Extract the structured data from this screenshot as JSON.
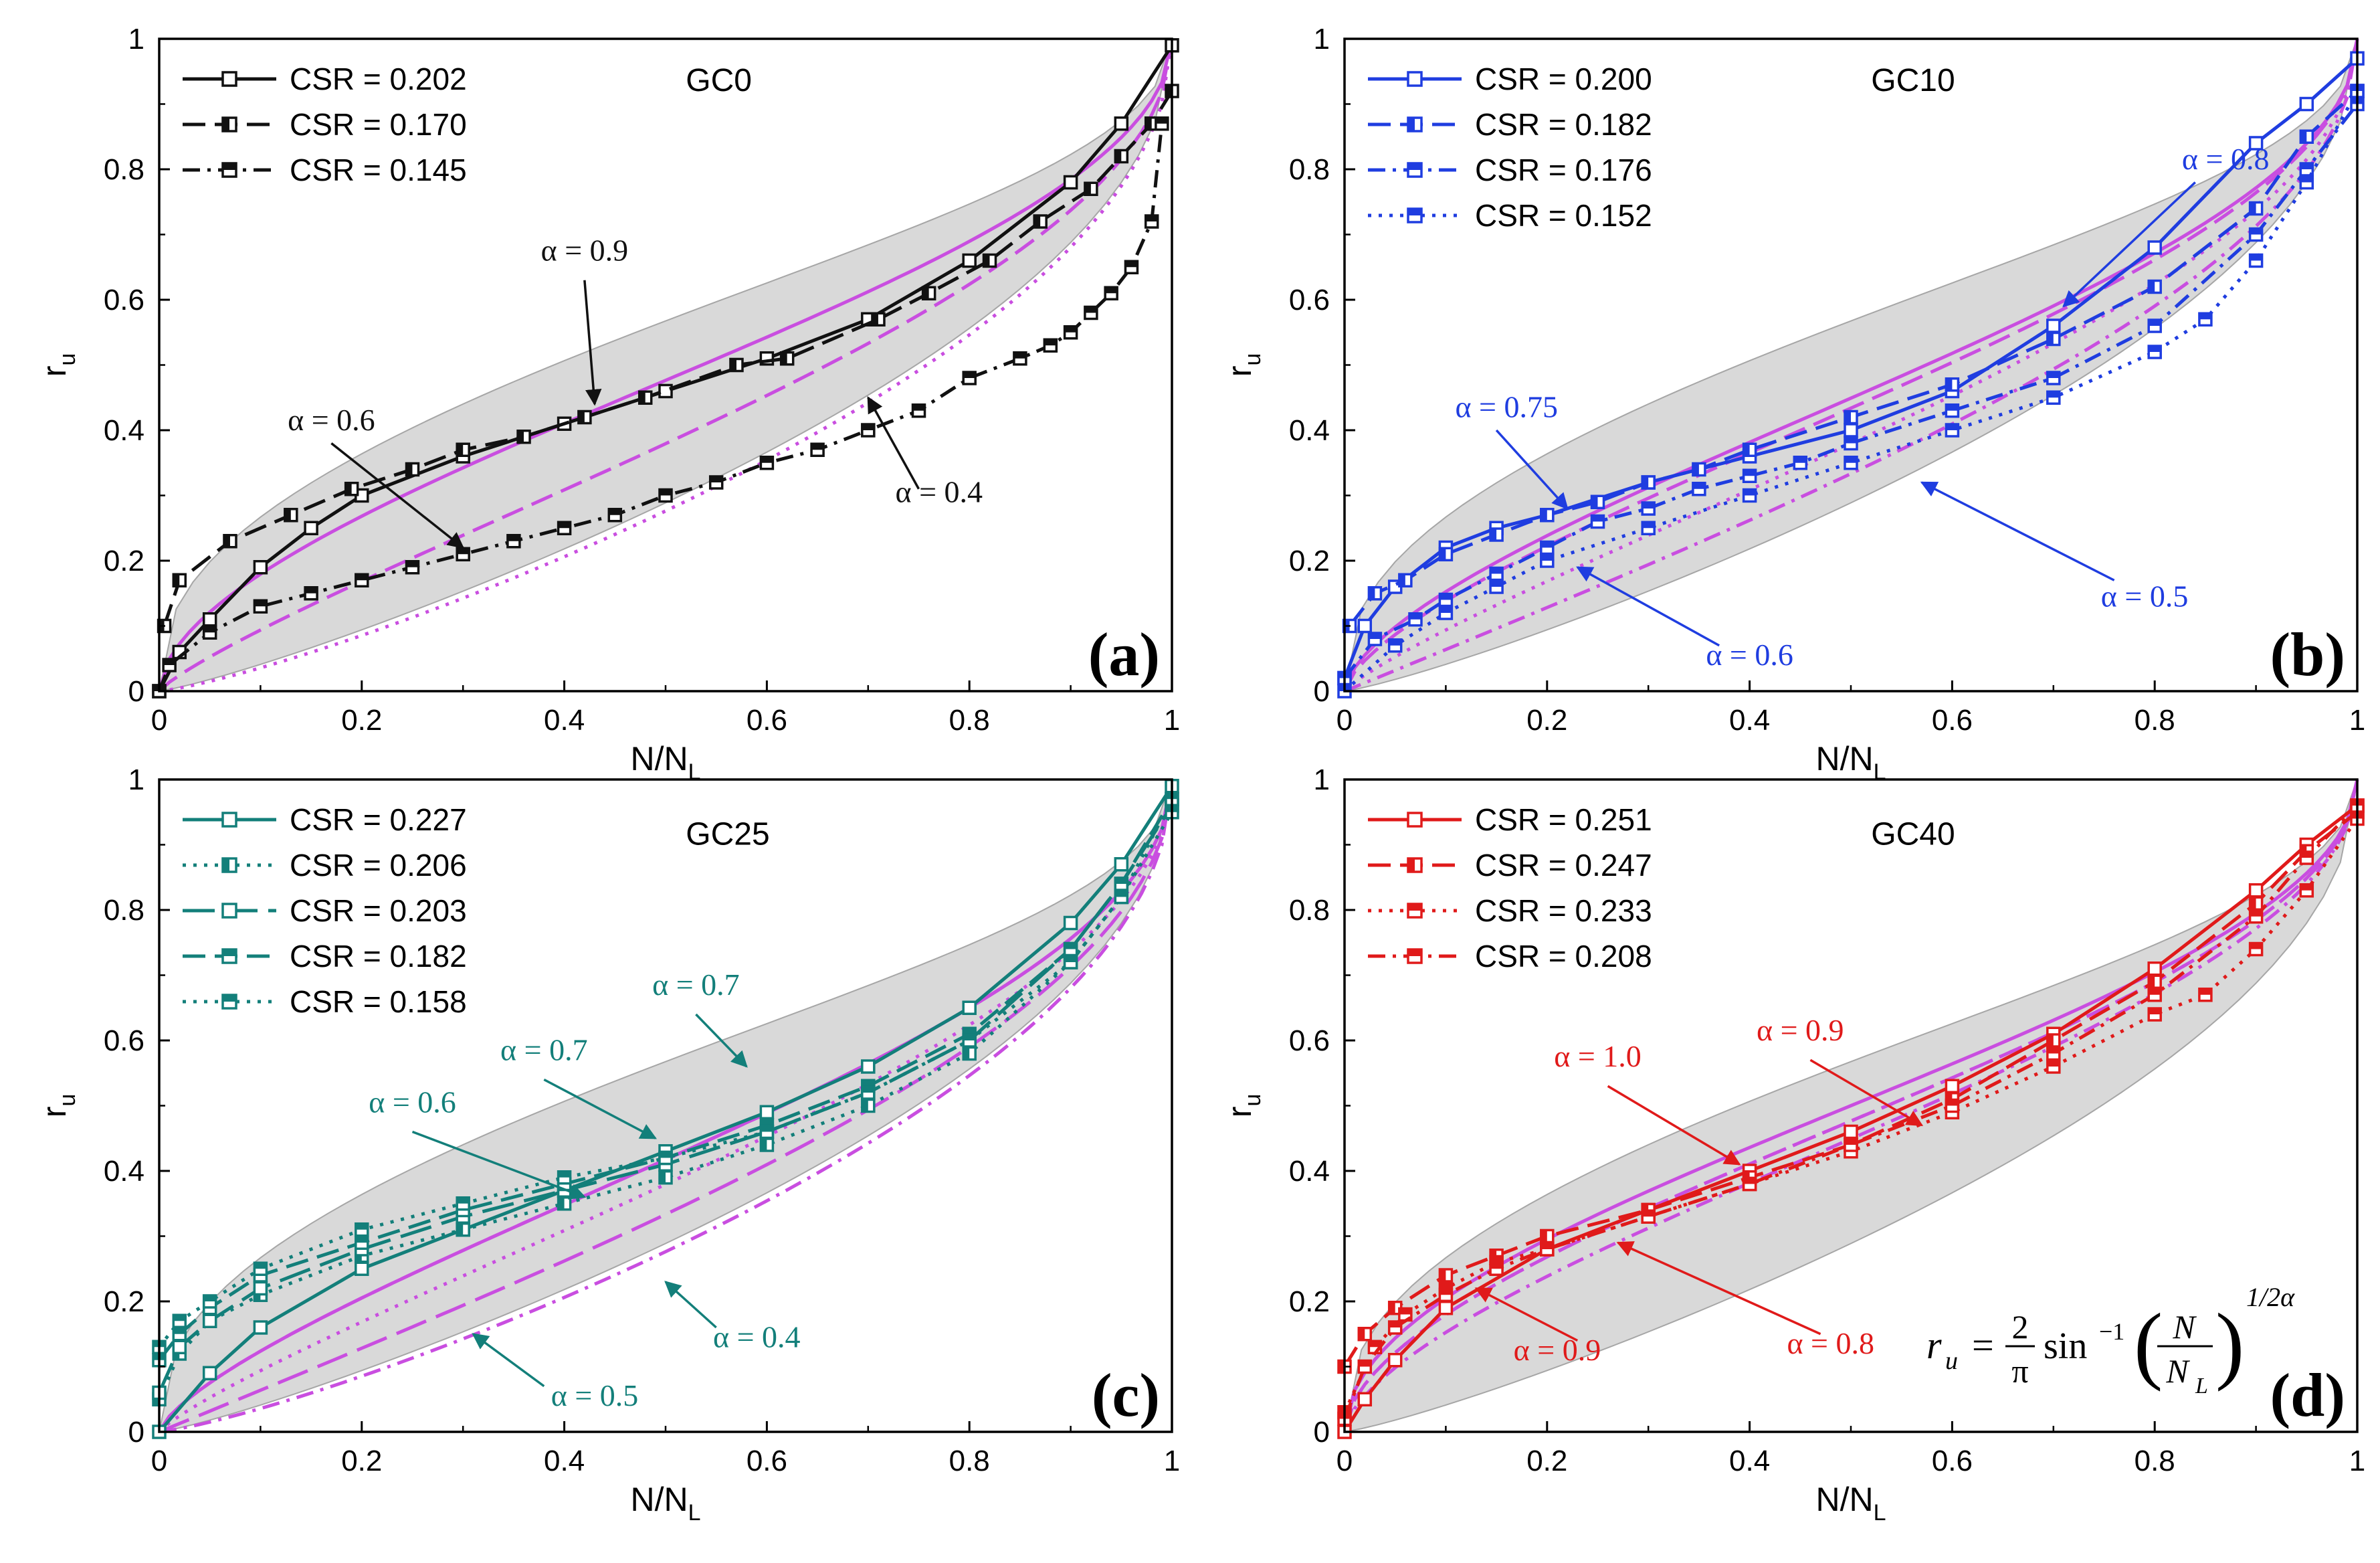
{
  "figure": {
    "x_label_main": "N/N",
    "x_label_sub": "L",
    "y_label_main": "r",
    "y_label_sub": "u",
    "x_ticks": [
      "0",
      "0.2",
      "0.4",
      "0.6",
      "0.8",
      "1"
    ],
    "y_ticks": [
      "0",
      "0.2",
      "0.4",
      "0.6",
      "0.8",
      "1"
    ],
    "formula": {
      "lhs": "r",
      "lhs_sub": "u",
      "eq": "=",
      "num": "2",
      "den": "π",
      "func": "sin",
      "inv": "−1",
      "frac_num": "N",
      "frac_den": "N",
      "frac_den_sub": "L",
      "exponent": "1/2α"
    }
  },
  "colors": {
    "band": "#d9d9d9",
    "band_edge": "#a6a6a6",
    "model": "#c94ee0",
    "black": "#111111",
    "blue": "#1f3de0",
    "teal": "#137f7a",
    "red": "#e01a1a"
  },
  "chart_data": [
    {
      "type": "line",
      "panel_tag": "(a)",
      "group": "GC0",
      "series_color": "black",
      "xlim": [
        0,
        1
      ],
      "ylim": [
        0,
        1
      ],
      "xlabel": "N/NL",
      "ylabel": "ru",
      "series": [
        {
          "name": "CSR = 0.202",
          "dash": "solid",
          "marker": "open",
          "x": [
            0,
            0.02,
            0.05,
            0.1,
            0.15,
            0.2,
            0.3,
            0.4,
            0.5,
            0.6,
            0.7,
            0.8,
            0.9,
            0.95,
            1.0
          ],
          "y": [
            0,
            0.06,
            0.11,
            0.19,
            0.25,
            0.3,
            0.36,
            0.41,
            0.46,
            0.51,
            0.57,
            0.66,
            0.78,
            0.87,
            0.99
          ]
        },
        {
          "name": "CSR = 0.170",
          "dash": "dash",
          "marker": "half",
          "x": [
            0.005,
            0.02,
            0.07,
            0.13,
            0.19,
            0.25,
            0.3,
            0.36,
            0.42,
            0.48,
            0.57,
            0.62,
            0.71,
            0.76,
            0.82,
            0.87,
            0.92,
            0.95,
            0.98,
            1.0
          ],
          "y": [
            0.1,
            0.17,
            0.23,
            0.27,
            0.31,
            0.34,
            0.37,
            0.39,
            0.42,
            0.45,
            0.5,
            0.51,
            0.57,
            0.61,
            0.66,
            0.72,
            0.77,
            0.82,
            0.87,
            0.92
          ]
        },
        {
          "name": "CSR = 0.145",
          "dash": "dashdot",
          "marker": "filled-top",
          "x": [
            0,
            0.01,
            0.05,
            0.1,
            0.15,
            0.2,
            0.25,
            0.3,
            0.35,
            0.4,
            0.45,
            0.5,
            0.55,
            0.6,
            0.65,
            0.7,
            0.75,
            0.8,
            0.85,
            0.88,
            0.9,
            0.92,
            0.94,
            0.96,
            0.98,
            0.99
          ],
          "y": [
            0,
            0.04,
            0.09,
            0.13,
            0.15,
            0.17,
            0.19,
            0.21,
            0.23,
            0.25,
            0.27,
            0.3,
            0.32,
            0.35,
            0.37,
            0.4,
            0.43,
            0.48,
            0.51,
            0.53,
            0.55,
            0.58,
            0.61,
            0.65,
            0.72,
            0.87
          ]
        }
      ],
      "model_alphas": [
        0.9,
        0.6,
        0.4
      ],
      "annotations": [
        "α = 0.9",
        "α = 0.6",
        "α = 0.4"
      ]
    },
    {
      "type": "line",
      "panel_tag": "(b)",
      "group": "GC10",
      "series_color": "blue",
      "xlim": [
        0,
        1
      ],
      "ylim": [
        0,
        1
      ],
      "xlabel": "N/NL",
      "ylabel": "ru",
      "series": [
        {
          "name": "CSR = 0.200",
          "dash": "solid",
          "marker": "open",
          "x": [
            0,
            0.02,
            0.05,
            0.1,
            0.15,
            0.2,
            0.3,
            0.4,
            0.5,
            0.6,
            0.7,
            0.8,
            0.9,
            0.95,
            1.0
          ],
          "y": [
            0.02,
            0.1,
            0.16,
            0.22,
            0.25,
            0.27,
            0.32,
            0.36,
            0.4,
            0.46,
            0.56,
            0.68,
            0.84,
            0.9,
            0.97
          ]
        },
        {
          "name": "CSR = 0.182",
          "dash": "dash",
          "marker": "half",
          "x": [
            0.005,
            0.03,
            0.06,
            0.1,
            0.15,
            0.2,
            0.25,
            0.3,
            0.35,
            0.4,
            0.5,
            0.6,
            0.7,
            0.8,
            0.9,
            0.95,
            1.0
          ],
          "y": [
            0.1,
            0.15,
            0.17,
            0.21,
            0.24,
            0.27,
            0.29,
            0.32,
            0.34,
            0.37,
            0.42,
            0.47,
            0.54,
            0.62,
            0.74,
            0.85,
            0.92
          ]
        },
        {
          "name": "CSR = 0.176",
          "dash": "dashdot",
          "marker": "filled-top",
          "x": [
            0,
            0.03,
            0.07,
            0.1,
            0.15,
            0.2,
            0.25,
            0.3,
            0.35,
            0.4,
            0.45,
            0.5,
            0.6,
            0.7,
            0.8,
            0.9,
            0.95,
            1.0
          ],
          "y": [
            0.02,
            0.08,
            0.11,
            0.14,
            0.18,
            0.22,
            0.26,
            0.28,
            0.31,
            0.33,
            0.35,
            0.38,
            0.43,
            0.48,
            0.56,
            0.7,
            0.8,
            0.9
          ]
        },
        {
          "name": "CSR = 0.152",
          "dash": "dot",
          "marker": "filled-top",
          "x": [
            0,
            0.05,
            0.1,
            0.15,
            0.2,
            0.3,
            0.4,
            0.5,
            0.6,
            0.7,
            0.8,
            0.85,
            0.9,
            0.95,
            1.0
          ],
          "y": [
            0,
            0.07,
            0.12,
            0.16,
            0.2,
            0.25,
            0.3,
            0.35,
            0.4,
            0.45,
            0.52,
            0.57,
            0.66,
            0.78,
            0.92
          ]
        }
      ],
      "model_alphas": [
        0.8,
        0.75,
        0.6,
        0.5
      ],
      "annotations": [
        "α = 0.8",
        "α = 0.75",
        "α = 0.6",
        "α = 0.5"
      ]
    },
    {
      "type": "line",
      "panel_tag": "(c)",
      "group": "GC25",
      "series_color": "teal",
      "xlim": [
        0,
        1
      ],
      "ylim": [
        0,
        1
      ],
      "xlabel": "N/NL",
      "ylabel": "ru",
      "series": [
        {
          "name": "CSR = 0.227",
          "dash": "solid",
          "marker": "open",
          "x": [
            0,
            0.05,
            0.1,
            0.2,
            0.3,
            0.4,
            0.5,
            0.6,
            0.7,
            0.8,
            0.9,
            0.95,
            1.0
          ],
          "y": [
            0,
            0.09,
            0.16,
            0.25,
            0.31,
            0.37,
            0.43,
            0.49,
            0.56,
            0.65,
            0.78,
            0.87,
            0.99
          ]
        },
        {
          "name": "CSR = 0.206",
          "dash": "dot",
          "marker": "half",
          "x": [
            0,
            0.02,
            0.05,
            0.1,
            0.2,
            0.3,
            0.4,
            0.5,
            0.6,
            0.7,
            0.8,
            0.9,
            0.95,
            1.0
          ],
          "y": [
            0.05,
            0.12,
            0.17,
            0.21,
            0.27,
            0.31,
            0.35,
            0.39,
            0.44,
            0.5,
            0.58,
            0.72,
            0.82,
            0.97
          ]
        },
        {
          "name": "CSR = 0.203",
          "dash": "longdash",
          "marker": "open",
          "x": [
            0,
            0.02,
            0.05,
            0.1,
            0.2,
            0.3,
            0.4,
            0.5,
            0.6,
            0.7,
            0.8,
            0.9,
            0.95,
            1.0
          ],
          "y": [
            0.06,
            0.13,
            0.17,
            0.22,
            0.28,
            0.33,
            0.37,
            0.41,
            0.46,
            0.52,
            0.6,
            0.74,
            0.84,
            0.96
          ]
        },
        {
          "name": "CSR = 0.182",
          "dash": "dash",
          "marker": "filled-top",
          "x": [
            0,
            0.02,
            0.05,
            0.1,
            0.2,
            0.3,
            0.4,
            0.5,
            0.6,
            0.7,
            0.8,
            0.9,
            0.95,
            1.0
          ],
          "y": [
            0.11,
            0.15,
            0.19,
            0.24,
            0.29,
            0.34,
            0.38,
            0.42,
            0.47,
            0.53,
            0.61,
            0.74,
            0.84,
            0.97
          ]
        },
        {
          "name": "CSR = 0.158",
          "dash": "dot",
          "marker": "filled-top",
          "x": [
            0,
            0.02,
            0.05,
            0.1,
            0.2,
            0.3,
            0.4,
            0.5,
            0.6,
            0.7,
            0.8,
            0.9,
            0.95,
            1.0
          ],
          "y": [
            0.13,
            0.17,
            0.2,
            0.25,
            0.31,
            0.35,
            0.39,
            0.42,
            0.46,
            0.52,
            0.6,
            0.72,
            0.82,
            0.95
          ]
        }
      ],
      "model_alphas": [
        0.7,
        0.7,
        0.6,
        0.4,
        0.5
      ],
      "annotations": [
        "α = 0.7",
        "α = 0.7",
        "α = 0.6",
        "α = 0.4",
        "α = 0.5"
      ]
    },
    {
      "type": "line",
      "panel_tag": "(d)",
      "group": "GC40",
      "series_color": "red",
      "xlim": [
        0,
        1
      ],
      "ylim": [
        0,
        1
      ],
      "xlabel": "N/NL",
      "ylabel": "ru",
      "series": [
        {
          "name": "CSR = 0.251",
          "dash": "solid",
          "marker": "open",
          "x": [
            0,
            0.02,
            0.05,
            0.1,
            0.2,
            0.3,
            0.4,
            0.5,
            0.6,
            0.7,
            0.8,
            0.9,
            0.95,
            1.0
          ],
          "y": [
            0,
            0.05,
            0.11,
            0.19,
            0.28,
            0.34,
            0.4,
            0.46,
            0.53,
            0.61,
            0.71,
            0.83,
            0.9,
            0.96
          ]
        },
        {
          "name": "CSR = 0.247",
          "dash": "dash",
          "marker": "half",
          "x": [
            0,
            0.02,
            0.05,
            0.1,
            0.15,
            0.2,
            0.3,
            0.4,
            0.5,
            0.6,
            0.7,
            0.8,
            0.9,
            0.95,
            1.0
          ],
          "y": [
            0.1,
            0.15,
            0.19,
            0.24,
            0.27,
            0.3,
            0.34,
            0.39,
            0.44,
            0.51,
            0.6,
            0.69,
            0.81,
            0.89,
            0.95
          ]
        },
        {
          "name": "CSR = 0.233",
          "dash": "dot",
          "marker": "filled-top",
          "x": [
            0,
            0.03,
            0.06,
            0.1,
            0.15,
            0.2,
            0.3,
            0.4,
            0.5,
            0.6,
            0.7,
            0.8,
            0.85,
            0.9,
            0.95,
            1.0
          ],
          "y": [
            0.03,
            0.13,
            0.18,
            0.22,
            0.26,
            0.28,
            0.33,
            0.38,
            0.43,
            0.49,
            0.56,
            0.64,
            0.67,
            0.74,
            0.83,
            0.94
          ]
        },
        {
          "name": "CSR = 0.208",
          "dash": "dashdot",
          "marker": "filled-top",
          "x": [
            0,
            0.02,
            0.05,
            0.1,
            0.15,
            0.2,
            0.3,
            0.4,
            0.5,
            0.6,
            0.7,
            0.8,
            0.9,
            0.95,
            1.0
          ],
          "y": [
            0.02,
            0.1,
            0.16,
            0.21,
            0.25,
            0.28,
            0.33,
            0.38,
            0.44,
            0.5,
            0.58,
            0.67,
            0.79,
            0.88,
            0.96
          ]
        }
      ],
      "model_alphas": [
        1.0,
        0.9,
        0.9,
        0.8
      ],
      "annotations": [
        "α = 1.0",
        "α = 0.9",
        "α = 0.9",
        "α = 0.8"
      ]
    }
  ]
}
